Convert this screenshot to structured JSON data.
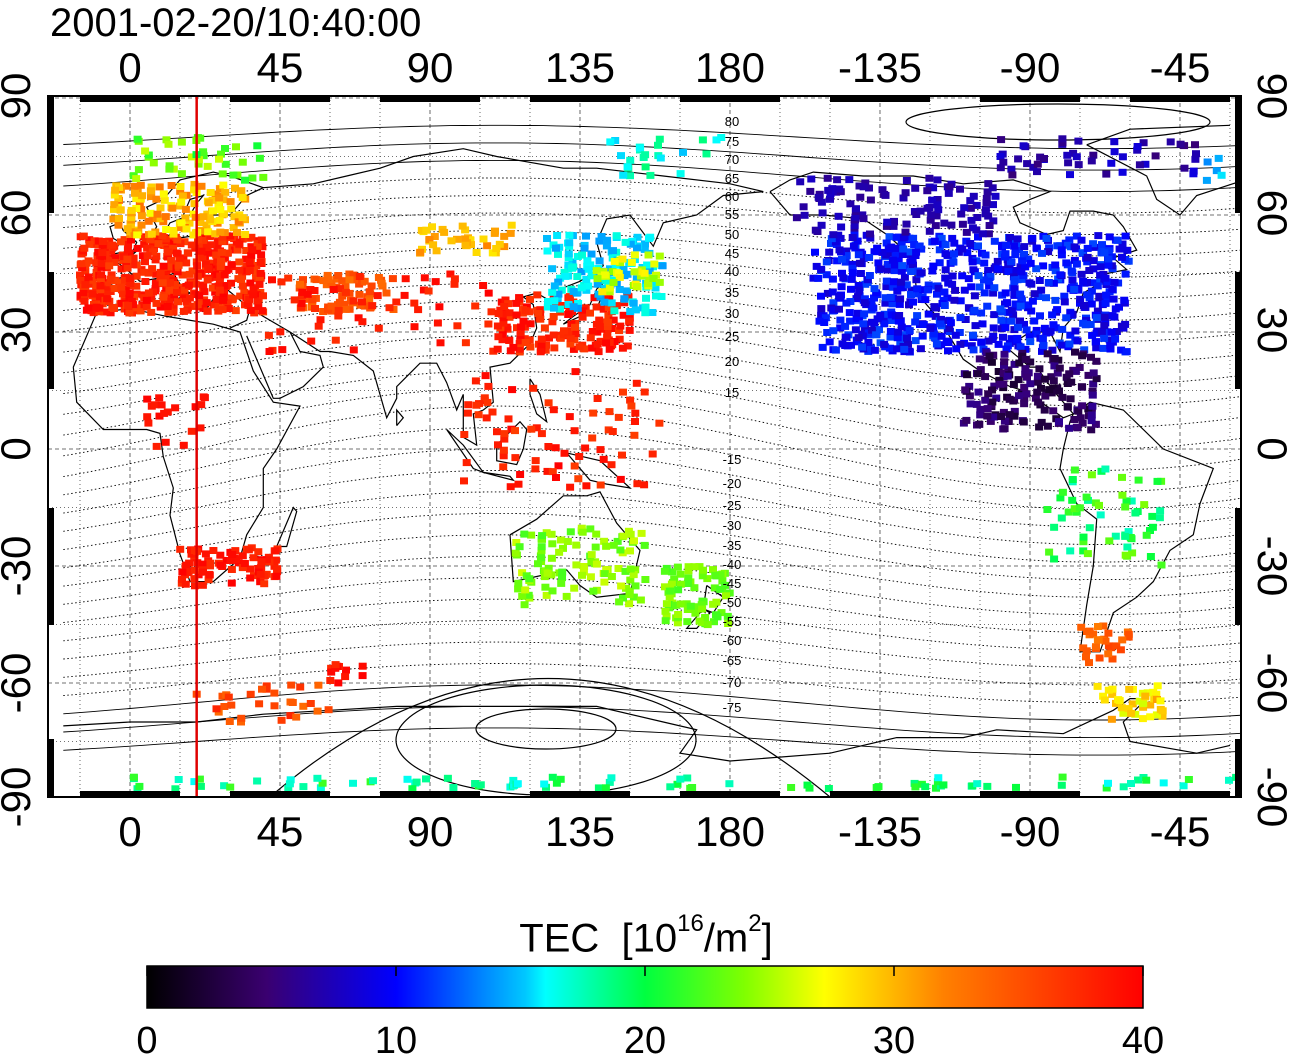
{
  "title": "2001-02-20/10:40:00",
  "map": {
    "lon_ticks_top": [
      "0",
      "45",
      "90",
      "135",
      "180",
      "-135",
      "-90",
      "-45"
    ],
    "lon_ticks_bottom": [
      "0",
      "45",
      "90",
      "135",
      "180",
      "-135",
      "-90",
      "-45"
    ],
    "lat_ticks_left": [
      "90",
      "60",
      "30",
      "0",
      "-30",
      "-60",
      "-90"
    ],
    "lat_ticks_right": [
      "90",
      "60",
      "30",
      "0",
      "-30",
      "-60",
      "-90"
    ],
    "magnetic_lat_labels": [
      "80",
      "75",
      "70",
      "65",
      "60",
      "55",
      "50",
      "45",
      "40",
      "35",
      "30",
      "25",
      "20",
      "15",
      "-15",
      "-20",
      "-25",
      "-30",
      "-35",
      "-40",
      "-45",
      "-50",
      "-55",
      "-60",
      "-65",
      "-70",
      "-75"
    ],
    "grid": true,
    "meridian_marker_lon": 20,
    "marker_color": "#e00000"
  },
  "colorbar": {
    "title_main": "TEC",
    "title_unit_prefix": "[10",
    "title_unit_exp": "16",
    "title_unit_mid": "/m",
    "title_unit_exp2": "2",
    "title_unit_suffix": "]",
    "min": 0,
    "max": 40,
    "tick_labels": [
      "0",
      "10",
      "20",
      "30",
      "40"
    ]
  }
}
